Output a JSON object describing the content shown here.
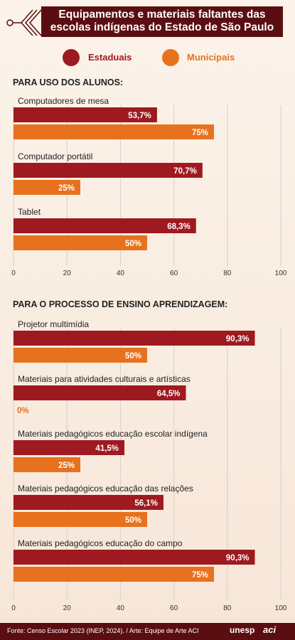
{
  "header": {
    "title_line1": "Equipamentos e materiais faltantes das",
    "title_line2": "escolas indígenas do Estado de São Paulo"
  },
  "legend": {
    "estaduais": "Estaduais",
    "municipais": "Municipais"
  },
  "colors": {
    "estaduais": "#9e1a20",
    "municipais": "#e8711e",
    "header_bg": "#5b0e12",
    "zero_label": "#e8711e"
  },
  "sections": {
    "alunos": "PARA USO DOS ALUNOS:",
    "ensino": "PARA O PROCESSO DE ENSINO APRENDIZAGEM:"
  },
  "chart_data": [
    {
      "type": "bar",
      "orientation": "horizontal",
      "section": "PARA USO DOS ALUNOS:",
      "categories": [
        "Computadores de mesa",
        "Computador portátil",
        "Tablet"
      ],
      "series": [
        {
          "name": "Estaduais",
          "values": [
            53.7,
            70.7,
            68.3
          ],
          "labels": [
            "53,7%",
            "70,7%",
            "68,3%"
          ]
        },
        {
          "name": "Municipais",
          "values": [
            75,
            25,
            50
          ],
          "labels": [
            "75%",
            "25%",
            "50%"
          ]
        }
      ],
      "xlim": [
        0,
        100
      ],
      "xticks": [
        "0",
        "20",
        "40",
        "60",
        "80",
        "100"
      ],
      "grid": true
    },
    {
      "type": "bar",
      "orientation": "horizontal",
      "section": "PARA O PROCESSO DE ENSINO APRENDIZAGEM:",
      "categories": [
        "Projetor multimídia",
        "Materiais para atividades culturais e artísticas",
        "Materiais pedagógicos educação escolar indígena",
        "Materiais pedagógicos educação das relações",
        "Materiais pedagógicos educação do campo"
      ],
      "series": [
        {
          "name": "Estaduais",
          "values": [
            90.3,
            64.5,
            41.5,
            56.1,
            90.3
          ],
          "labels": [
            "90,3%",
            "64,5%",
            "41,5%",
            "56,1%",
            "90,3%"
          ]
        },
        {
          "name": "Municipais",
          "values": [
            50,
            0,
            25,
            50,
            75
          ],
          "labels": [
            "50%",
            "0%",
            "25%",
            "50%",
            "75%"
          ]
        }
      ],
      "xlim": [
        0,
        100
      ],
      "xticks": [
        "0",
        "20",
        "40",
        "60",
        "80",
        "100"
      ],
      "grid": true
    }
  ],
  "footer": {
    "source": "Fonte: Censo Escolar 2023 (INEP, 2024). / Arte: Equipe de Arte ACI",
    "logo_unesp": "unesp",
    "logo_aci": "aci"
  }
}
